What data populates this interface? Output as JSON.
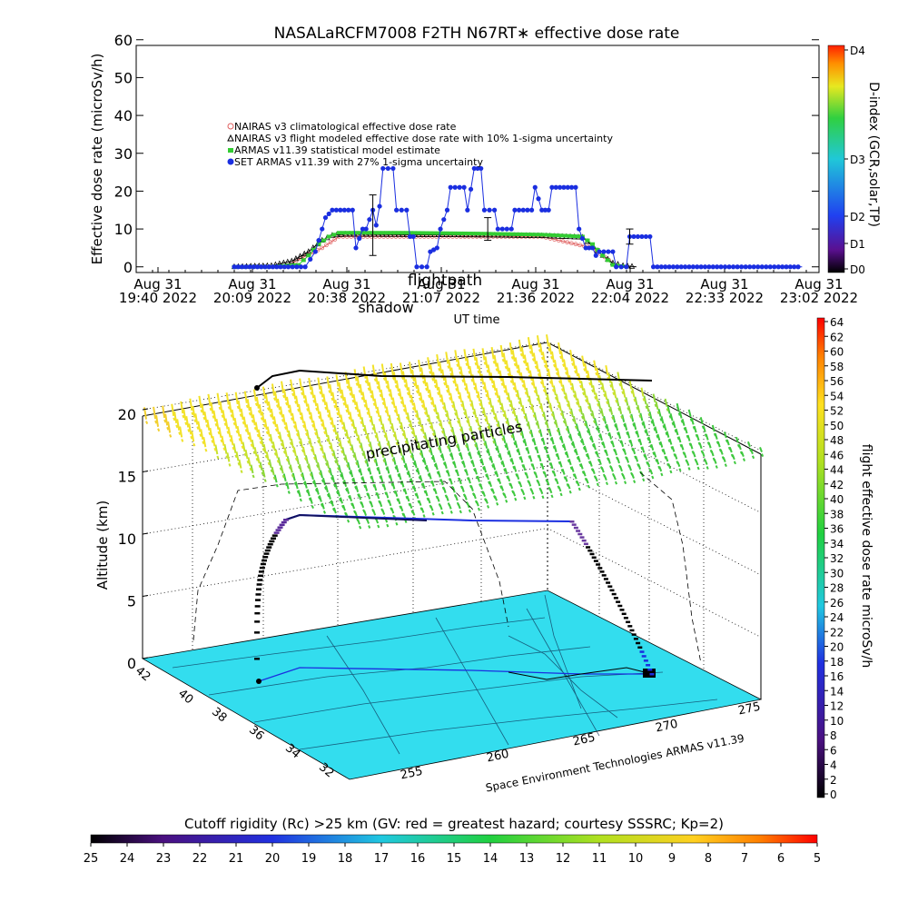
{
  "title": "NASALaRCFM7008  F2TH N67RT∗ effective dose rate",
  "top_chart": {
    "ylabel": "Effective dose rate (microSv/h)",
    "xlabel": "UT time",
    "overlay_text": {
      "flightpath": "flightpath",
      "shadow": "shadow"
    },
    "legend": [
      "NAIRAS v3 climatological effective dose rate",
      "NAIRAS v3 flight modeled effective dose rate with 10% 1-sigma uncertainty",
      "ARMAS v11.39 statistical model estimate",
      "SET ARMAS v11.39 with 27% 1-sigma uncertainty"
    ],
    "yticks": [
      "0",
      "10",
      "20",
      "30",
      "40",
      "50",
      "60"
    ],
    "xticks": [
      {
        "l1": "Aug 31",
        "l2": "19:40 2022"
      },
      {
        "l1": "Aug 31",
        "l2": "20:09 2022"
      },
      {
        "l1": "Aug 31",
        "l2": "20:38 2022"
      },
      {
        "l1": "Aug 31",
        "l2": "21:07 2022"
      },
      {
        "l1": "Aug 31",
        "l2": "21:36 2022"
      },
      {
        "l1": "Aug 31",
        "l2": "22:04 2022"
      },
      {
        "l1": "Aug 31",
        "l2": "22:33 2022"
      },
      {
        "l1": "Aug 31",
        "l2": "23:02 2022"
      }
    ],
    "dindex_label": "D-index (GCR,solar,TP)",
    "dindex_ticks": [
      "D0",
      "D1",
      "D2",
      "D3",
      "D4"
    ],
    "colors": {
      "nairas_clim": "#e06060",
      "nairas_flight": "#000000",
      "armas_model": "#33cc33",
      "set_armas": "#1a2ee0"
    }
  },
  "bottom_chart": {
    "zlabel": "Altitude (km)",
    "zticks": [
      "0",
      "5",
      "10",
      "15",
      "20"
    ],
    "lat_ticks": [
      "42",
      "40",
      "38",
      "36",
      "34",
      "32"
    ],
    "lon_ticks": [
      "255",
      "260",
      "265",
      "270",
      "275"
    ],
    "annotation": "precipitating particles",
    "credit": "Space Environment Technologies ARMAS v11.39",
    "colorbar_label": "flight effective dose rate microSv/h",
    "colorbar_ticks": [
      "0",
      "2",
      "4",
      "6",
      "8",
      "10",
      "12",
      "14",
      "16",
      "18",
      "20",
      "22",
      "24",
      "26",
      "28",
      "30",
      "32",
      "34",
      "36",
      "38",
      "40",
      "42",
      "44",
      "46",
      "48",
      "50",
      "52",
      "54",
      "56",
      "58",
      "60",
      "62",
      "64"
    ],
    "map_color": "#33ddee"
  },
  "cutoff_bar": {
    "label": "Cutoff rigidity (Rc) >25 km (GV: red = greatest hazard; courtesy SSSRC; Kp=2)",
    "ticks": [
      "25",
      "24",
      "23",
      "22",
      "21",
      "20",
      "19",
      "18",
      "17",
      "16",
      "15",
      "14",
      "13",
      "12",
      "11",
      "10",
      "9",
      "8",
      "7",
      "6",
      "5"
    ]
  },
  "chart_data": {
    "type": "line",
    "title": "NASALaRCFM7008  F2TH N67RT∗ effective dose rate",
    "xlabel": "UT time",
    "ylabel": "Effective dose rate (microSv/h)",
    "ylim": [
      0,
      60
    ],
    "xlim": [
      "19:40",
      "23:02"
    ],
    "legend_position": "upper-left",
    "series": [
      {
        "name": "SET ARMAS v11.39 with 27% 1-sigma uncertainty",
        "color": "#1a2ee0",
        "points": [
          [
            "20:09",
            0
          ],
          [
            "20:17",
            0
          ],
          [
            "20:25",
            0
          ],
          [
            "20:30",
            0
          ],
          [
            "20:33",
            4
          ],
          [
            "20:35",
            10
          ],
          [
            "20:36",
            13
          ],
          [
            "20:38",
            15
          ],
          [
            "20:44",
            15
          ],
          [
            "20:45",
            5
          ],
          [
            "20:47",
            10
          ],
          [
            "20:48",
            10
          ],
          [
            "20:50",
            15
          ],
          [
            "20:51",
            11
          ],
          [
            "20:52",
            16
          ],
          [
            "20:53",
            26
          ],
          [
            "20:56",
            26
          ],
          [
            "20:57",
            15
          ],
          [
            "21:00",
            15
          ],
          [
            "21:01",
            8
          ],
          [
            "21:02",
            8
          ],
          [
            "21:03",
            0
          ],
          [
            "21:06",
            0
          ],
          [
            "21:07",
            4
          ],
          [
            "21:09",
            5
          ],
          [
            "21:10",
            10
          ],
          [
            "21:12",
            15
          ],
          [
            "21:13",
            21
          ],
          [
            "21:17",
            21
          ],
          [
            "21:18",
            15
          ],
          [
            "21:20",
            26
          ],
          [
            "21:22",
            26
          ],
          [
            "21:23",
            15
          ],
          [
            "21:26",
            15
          ],
          [
            "21:27",
            10
          ],
          [
            "21:31",
            10
          ],
          [
            "21:32",
            15
          ],
          [
            "21:37",
            15
          ],
          [
            "21:38",
            21
          ],
          [
            "21:40",
            15
          ],
          [
            "21:42",
            15
          ],
          [
            "21:43",
            21
          ],
          [
            "21:50",
            21
          ],
          [
            "21:51",
            10
          ],
          [
            "21:53",
            5
          ],
          [
            "21:55",
            5
          ],
          [
            "21:56",
            3
          ],
          [
            "21:57",
            4
          ],
          [
            "22:01",
            4
          ],
          [
            "22:02",
            0
          ],
          [
            "22:05",
            0
          ],
          [
            "22:06",
            8
          ],
          [
            "22:12",
            8
          ],
          [
            "22:13",
            0
          ],
          [
            "22:33",
            0
          ],
          [
            "22:50",
            0
          ],
          [
            "22:57",
            0
          ]
        ]
      },
      {
        "name": "ARMAS v11.39 statistical model estimate",
        "color": "#33cc33",
        "points": [
          [
            "20:09",
            0
          ],
          [
            "20:20",
            0
          ],
          [
            "20:28",
            0.5
          ],
          [
            "20:31",
            3
          ],
          [
            "20:34",
            6
          ],
          [
            "20:37",
            8
          ],
          [
            "20:40",
            9
          ],
          [
            "21:00",
            9
          ],
          [
            "21:20",
            8.8
          ],
          [
            "21:40",
            8.5
          ],
          [
            "21:52",
            8
          ],
          [
            "21:55",
            6
          ],
          [
            "21:58",
            3
          ],
          [
            "22:01",
            0.5
          ],
          [
            "22:05",
            0
          ]
        ]
      },
      {
        "name": "NAIRAS v3 flight modeled effective dose rate with 10% 1-sigma uncertainty",
        "color": "#000000",
        "points": [
          [
            "20:09",
            0
          ],
          [
            "20:20",
            0.3
          ],
          [
            "20:26",
            1.5
          ],
          [
            "20:31",
            4
          ],
          [
            "20:35",
            7
          ],
          [
            "20:38",
            8.3
          ],
          [
            "20:42",
            8.6
          ],
          [
            "21:00",
            8.5
          ],
          [
            "21:20",
            8.4
          ],
          [
            "21:40",
            8.2
          ],
          [
            "21:52",
            7.8
          ],
          [
            "21:55",
            5.5
          ],
          [
            "21:58",
            3
          ],
          [
            "22:01",
            1
          ],
          [
            "22:04",
            0.3
          ],
          [
            "22:08",
            0
          ]
        ]
      },
      {
        "name": "NAIRAS v3 climatological effective dose rate",
        "color": "#e06060",
        "points": [
          [
            "20:26",
            1
          ],
          [
            "20:35",
            5
          ],
          [
            "20:40",
            8
          ],
          [
            "21:40",
            8
          ],
          [
            "21:55",
            5
          ],
          [
            "22:01",
            1
          ]
        ]
      }
    ],
    "error_bars": [
      {
        "x": "20:50",
        "y": 11,
        "err": 8
      },
      {
        "x": "21:24",
        "y": 10,
        "err": 3
      },
      {
        "x": "22:06",
        "y": 8,
        "err": 2
      }
    ]
  }
}
